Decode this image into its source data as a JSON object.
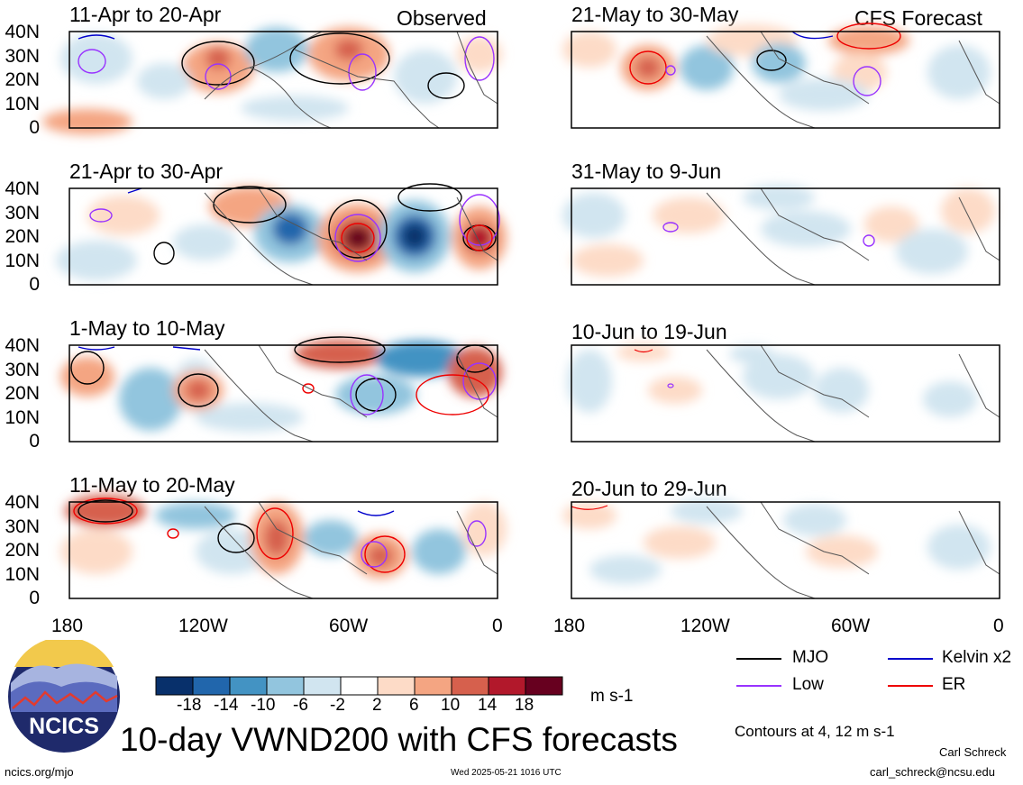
{
  "main_title": "10-day VWND200 with CFS forecasts",
  "header_left": "Observed",
  "header_right": "CFS Forecast",
  "units": "m s-1",
  "contour_note": "Contours at 4, 12 m s-1",
  "author": "Carl Schreck",
  "email": "carl_schreck@ncsu.edu",
  "url": "ncics.org/mjo",
  "timestamp": "Wed 2025-05-21 1016 UTC",
  "logo_text": "NCICS",
  "y_ticks": [
    "40N",
    "30N",
    "20N",
    "10N",
    "0"
  ],
  "x_ticks": [
    "180",
    "120W",
    "60W",
    "0"
  ],
  "colorbar": {
    "ticks": [
      "-18",
      "-14",
      "-10",
      "-6",
      "-2",
      "2",
      "6",
      "10",
      "14",
      "18"
    ],
    "colors": [
      "#08306b",
      "#2166ac",
      "#4393c3",
      "#92c5de",
      "#d1e5f0",
      "#ffffff",
      "#fddbc7",
      "#f4a582",
      "#d6604d",
      "#b2182b",
      "#67001f"
    ]
  },
  "legend": [
    {
      "label": "MJO",
      "color": "#000000"
    },
    {
      "label": "Kelvin x2",
      "color": "#0000cc"
    },
    {
      "label": "Low",
      "color": "#9933ff"
    },
    {
      "label": "ER",
      "color": "#ee0000"
    }
  ],
  "panels": {
    "left": [
      "11-Apr to 20-Apr",
      "21-Apr to 30-Apr",
      "1-May to 10-May",
      "11-May to 20-May"
    ],
    "right": [
      "21-May to 30-May",
      "31-May to 9-Jun",
      "10-Jun to 19-Jun",
      "20-Jun to 29-Jun"
    ]
  }
}
